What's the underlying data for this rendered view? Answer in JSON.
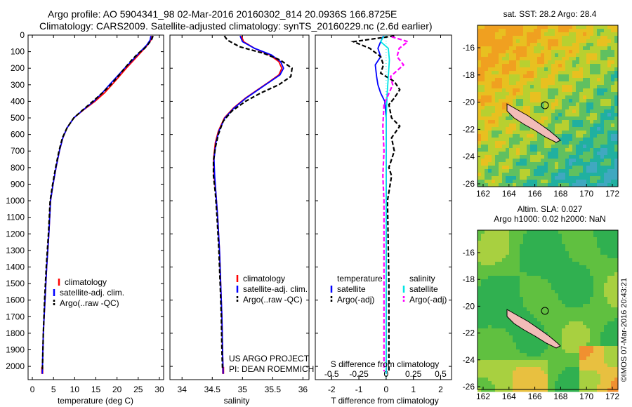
{
  "header": {
    "line1": "Argo profile: AO 5904341_98 02-Mar-2016 20160302_814 20.0936S 166.8725E",
    "line2": "Climatology: CARS2009. Satellite-adjusted climatology: synTS_20160229.nc (2.6d earlier)"
  },
  "chart_data": [
    {
      "id": "temperature",
      "type": "line",
      "xlabel": "temperature (deg C)",
      "ylabel": "",
      "xlim": [
        -1,
        31
      ],
      "ylim": [
        2080,
        0
      ],
      "xticks": [
        0,
        5,
        10,
        15,
        20,
        25,
        30
      ],
      "xtick_labels": [
        "0",
        "5",
        "10",
        "15",
        "20",
        "25",
        "30"
      ],
      "yticks": [
        0,
        100,
        200,
        300,
        400,
        500,
        600,
        700,
        800,
        900,
        1000,
        1100,
        1200,
        1300,
        1400,
        1500,
        1600,
        1700,
        1800,
        1900,
        2000
      ],
      "yaxis_label_side": "left",
      "legend": [
        "climatology",
        "satellite-adj. clim.",
        "Argo(..raw -QC)"
      ],
      "series": [
        {
          "name": "climatology",
          "color": "#ff0000",
          "style": "solid",
          "points": [
            [
              28.2,
              5
            ],
            [
              28.0,
              30
            ],
            [
              27.2,
              60
            ],
            [
              25.8,
              100
            ],
            [
              24.0,
              150
            ],
            [
              22.2,
              200
            ],
            [
              20.5,
              250
            ],
            [
              18.8,
              300
            ],
            [
              17.0,
              350
            ],
            [
              14.8,
              400
            ],
            [
              12.2,
              450
            ],
            [
              9.8,
              500
            ],
            [
              8.2,
              560
            ],
            [
              7.2,
              620
            ],
            [
              6.4,
              700
            ],
            [
              5.6,
              800
            ],
            [
              4.9,
              900
            ],
            [
              4.3,
              1000
            ],
            [
              3.9,
              1200
            ],
            [
              3.4,
              1400
            ],
            [
              3.0,
              1600
            ],
            [
              2.6,
              1800
            ],
            [
              2.4,
              2000
            ],
            [
              2.35,
              2045
            ]
          ]
        },
        {
          "name": "satellite-adj. clim.",
          "color": "#0000ff",
          "style": "solid",
          "points": [
            [
              28.0,
              5
            ],
            [
              27.8,
              30
            ],
            [
              27.0,
              60
            ],
            [
              25.5,
              100
            ],
            [
              23.7,
              150
            ],
            [
              21.8,
              200
            ],
            [
              20.0,
              250
            ],
            [
              18.2,
              300
            ],
            [
              16.5,
              350
            ],
            [
              14.5,
              400
            ],
            [
              12.1,
              450
            ],
            [
              9.8,
              500
            ],
            [
              8.2,
              560
            ],
            [
              7.2,
              620
            ],
            [
              6.4,
              700
            ],
            [
              5.6,
              800
            ],
            [
              4.9,
              900
            ],
            [
              4.3,
              1000
            ],
            [
              3.9,
              1200
            ],
            [
              3.4,
              1400
            ],
            [
              3.0,
              1600
            ],
            [
              2.6,
              1800
            ],
            [
              2.4,
              2000
            ],
            [
              2.35,
              2045
            ]
          ]
        },
        {
          "name": "Argo(..raw -QC)",
          "color": "#000000",
          "style": "dashed",
          "points": [
            [
              28.5,
              5
            ],
            [
              28.2,
              25
            ],
            [
              27.5,
              50
            ],
            [
              26.5,
              80
            ],
            [
              25.0,
              110
            ],
            [
              23.5,
              150
            ],
            [
              21.8,
              200
            ],
            [
              20.2,
              250
            ],
            [
              18.5,
              300
            ],
            [
              16.5,
              350
            ],
            [
              14.3,
              400
            ],
            [
              12.0,
              450
            ],
            [
              9.8,
              500
            ],
            [
              8.2,
              560
            ],
            [
              7.1,
              620
            ],
            [
              6.3,
              700
            ],
            [
              5.5,
              800
            ],
            [
              4.8,
              900
            ],
            [
              4.2,
              1000
            ],
            [
              3.8,
              1200
            ],
            [
              3.3,
              1400
            ],
            [
              2.9,
              1600
            ],
            [
              2.6,
              1800
            ],
            [
              2.4,
              2000
            ],
            [
              2.35,
              2030
            ]
          ]
        }
      ]
    },
    {
      "id": "salinity",
      "type": "line",
      "xlabel": "salinity",
      "ylabel": "",
      "xlim": [
        33.8,
        36.1
      ],
      "ylim": [
        2080,
        0
      ],
      "xticks": [
        34,
        34.5,
        35,
        35.5,
        36
      ],
      "xtick_labels": [
        "34",
        "34.5",
        "35",
        "35.5",
        "36"
      ],
      "legend": [
        "climatology",
        "satellite-adj. clim.",
        "Argo(..raw -QC)"
      ],
      "annotation": [
        "US ARGO PROJECT",
        "PI: DEAN ROEMMICH"
      ],
      "series": [
        {
          "name": "climatology",
          "color": "#ff0000",
          "style": "solid",
          "points": [
            [
              34.98,
              5
            ],
            [
              35.02,
              40
            ],
            [
              35.2,
              80
            ],
            [
              35.45,
              120
            ],
            [
              35.6,
              160
            ],
            [
              35.65,
              200
            ],
            [
              35.6,
              240
            ],
            [
              35.45,
              280
            ],
            [
              35.25,
              330
            ],
            [
              35.05,
              380
            ],
            [
              34.85,
              440
            ],
            [
              34.7,
              500
            ],
            [
              34.6,
              580
            ],
            [
              34.55,
              650
            ],
            [
              34.52,
              750
            ],
            [
              34.53,
              850
            ],
            [
              34.56,
              950
            ],
            [
              34.59,
              1100
            ],
            [
              34.62,
              1300
            ],
            [
              34.64,
              1500
            ],
            [
              34.66,
              1700
            ],
            [
              34.67,
              1900
            ],
            [
              34.68,
              2045
            ]
          ]
        },
        {
          "name": "satellite-adj. clim.",
          "color": "#0000ff",
          "style": "solid",
          "points": [
            [
              34.96,
              5
            ],
            [
              35.0,
              40
            ],
            [
              35.2,
              80
            ],
            [
              35.48,
              120
            ],
            [
              35.63,
              160
            ],
            [
              35.68,
              200
            ],
            [
              35.62,
              240
            ],
            [
              35.46,
              280
            ],
            [
              35.26,
              330
            ],
            [
              35.06,
              380
            ],
            [
              34.86,
              440
            ],
            [
              34.71,
              500
            ],
            [
              34.61,
              580
            ],
            [
              34.56,
              650
            ],
            [
              34.53,
              750
            ],
            [
              34.54,
              850
            ],
            [
              34.56,
              950
            ],
            [
              34.59,
              1100
            ],
            [
              34.62,
              1300
            ],
            [
              34.64,
              1500
            ],
            [
              34.66,
              1700
            ],
            [
              34.67,
              1900
            ],
            [
              34.68,
              2045
            ]
          ]
        },
        {
          "name": "Argo(..raw -QC)",
          "color": "#000000",
          "style": "dashed",
          "points": [
            [
              34.7,
              5
            ],
            [
              34.75,
              30
            ],
            [
              34.95,
              70
            ],
            [
              35.35,
              110
            ],
            [
              35.62,
              150
            ],
            [
              35.82,
              200
            ],
            [
              35.8,
              250
            ],
            [
              35.6,
              300
            ],
            [
              35.3,
              350
            ],
            [
              35.05,
              400
            ],
            [
              34.82,
              460
            ],
            [
              34.68,
              520
            ],
            [
              34.6,
              600
            ],
            [
              34.55,
              680
            ],
            [
              34.52,
              760
            ],
            [
              34.52,
              850
            ],
            [
              34.55,
              950
            ],
            [
              34.58,
              1100
            ],
            [
              34.61,
              1300
            ],
            [
              34.63,
              1500
            ],
            [
              34.65,
              1700
            ],
            [
              34.66,
              1900
            ],
            [
              34.67,
              2020
            ]
          ]
        }
      ]
    },
    {
      "id": "differences",
      "type": "line",
      "xlabel": "T difference from climatology",
      "xlabel_top": "S difference from climatology",
      "xlim": [
        -2.6,
        2.4
      ],
      "ylim": [
        2080,
        0
      ],
      "xticks": [
        -2,
        -1,
        0,
        1,
        2
      ],
      "xtick_labels": [
        "-2",
        "-1",
        "0",
        "1",
        "2"
      ],
      "sticks": [
        -0.5,
        -0.25,
        0,
        0.25,
        0.5
      ],
      "stick_labels": [
        "-0.5",
        "-0.25",
        "0",
        "0.25",
        "0.5"
      ],
      "s_scale": 4,
      "legend_headers": [
        "temperature",
        "salinity"
      ],
      "legend": [
        "satellite",
        "Argo(-adj)",
        "satellite",
        "Argo(-adj)"
      ],
      "series": [
        {
          "name": "temperature satellite",
          "color": "#0000ff",
          "style": "solid",
          "points": [
            [
              -0.1,
              5
            ],
            [
              -0.2,
              40
            ],
            [
              -0.3,
              80
            ],
            [
              -0.2,
              130
            ],
            [
              -0.4,
              180
            ],
            [
              -0.35,
              250
            ],
            [
              -0.3,
              300
            ],
            [
              -0.2,
              350
            ],
            [
              -0.05,
              400
            ],
            [
              0,
              500
            ],
            [
              0,
              700
            ],
            [
              0,
              2045
            ]
          ]
        },
        {
          "name": "temperature Argo(-adj)",
          "color": "#000000",
          "style": "dashed",
          "points": [
            [
              0.3,
              5
            ],
            [
              -1.2,
              40
            ],
            [
              -0.6,
              80
            ],
            [
              -0.2,
              130
            ],
            [
              -0.1,
              180
            ],
            [
              -0.2,
              230
            ],
            [
              0.3,
              280
            ],
            [
              0.5,
              330
            ],
            [
              0.3,
              380
            ],
            [
              0.1,
              420
            ],
            [
              0.2,
              500
            ],
            [
              0.5,
              550
            ],
            [
              0.2,
              620
            ],
            [
              0.3,
              700
            ],
            [
              0.1,
              800
            ],
            [
              0.2,
              850
            ],
            [
              0.05,
              1000
            ],
            [
              0.1,
              1500
            ],
            [
              0.1,
              2030
            ]
          ]
        },
        {
          "name": "salinity satellite",
          "color": "#00e5e5",
          "style": "solid",
          "points": [
            [
              -0.02,
              5
            ],
            [
              -0.05,
              40
            ],
            [
              0.02,
              80
            ],
            [
              0.03,
              150
            ],
            [
              0.02,
              250
            ],
            [
              0.01,
              350
            ],
            [
              0,
              500
            ],
            [
              0,
              2045
            ]
          ]
        },
        {
          "name": "salinity Argo(-adj)",
          "color": "#ff00ff",
          "style": "dashed",
          "points": [
            [
              0.05,
              10
            ],
            [
              0.2,
              40
            ],
            [
              0.12,
              80
            ],
            [
              0.1,
              130
            ],
            [
              0.16,
              180
            ],
            [
              0.04,
              250
            ],
            [
              0.06,
              300
            ],
            [
              -0.02,
              420
            ],
            [
              -0.03,
              550
            ],
            [
              -0.02,
              700
            ],
            [
              -0.03,
              850
            ],
            [
              -0.02,
              1000
            ],
            [
              -0.02,
              1500
            ],
            [
              -0.02,
              2030
            ]
          ]
        }
      ]
    }
  ],
  "maps": {
    "sst": {
      "title": "sat. SST: 28.2 Argo: 28.4",
      "xticks": [
        "162",
        "164",
        "166",
        "168",
        "170",
        "172"
      ],
      "yticks": [
        "-16",
        "-18",
        "-20",
        "-22",
        "-24",
        "-26"
      ],
      "colors": [
        "#f0a020",
        "#e8c020",
        "#b8d030",
        "#60c060",
        "#20b0a0",
        "#40a8c0"
      ]
    },
    "sla": {
      "title1": "Altim. SLA: 0.027",
      "title2": "Argo h1000: 0.02 h2000: NaN",
      "xticks": [
        "162",
        "164",
        "166",
        "168",
        "170",
        "172"
      ],
      "yticks": [
        "-16",
        "-18",
        "-20",
        "-22",
        "-24",
        "-26"
      ],
      "colors": [
        "#30b050",
        "#60c040",
        "#a8d040",
        "#e8c040",
        "#f09030",
        "#30b8a0"
      ]
    }
  },
  "credit": "©IMOS 07-Mar-2016 20:43:21"
}
